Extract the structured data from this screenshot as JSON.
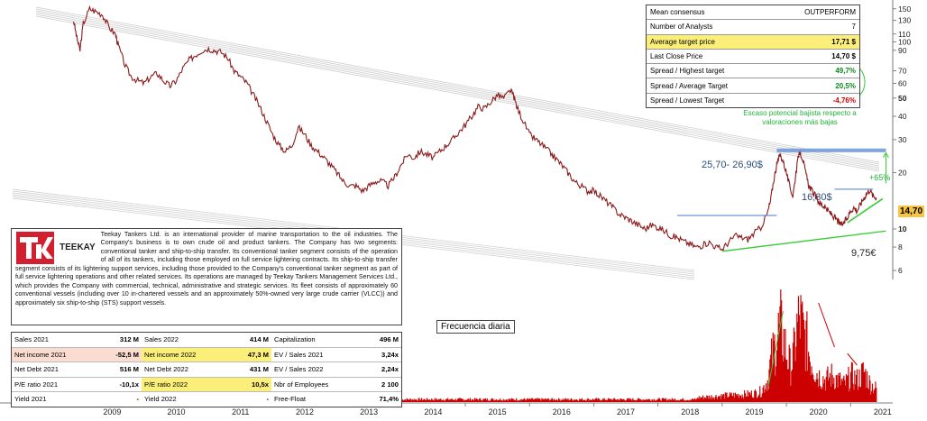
{
  "consensus": {
    "rows": [
      {
        "label": "Mean consensus",
        "value": "OUTPERFORM",
        "style": "plain"
      },
      {
        "label": "Number of Analysts",
        "value": "7",
        "style": "plain"
      },
      {
        "label": "Average target price",
        "value": "17,71 $",
        "style": "hl"
      },
      {
        "label": "Last Close Price",
        "value": "14,70 $",
        "style": "bold"
      },
      {
        "label": "Spread / Highest target",
        "value": "49,7%",
        "style": "pos"
      },
      {
        "label": "Spread / Average Target",
        "value": "20,5%",
        "style": "pos"
      },
      {
        "label": "Spread / Lowest Target",
        "value": "-4,76%",
        "style": "neg"
      }
    ]
  },
  "note": "Escaso potencial bajista respecto a valoraciones más bajas",
  "company": {
    "logo_text": "TEEKAY",
    "description": "Teekay Tankers Ltd. is an international provider of marine transportation to the oil industries. The Company's business is to own crude oil and product tankers. The Company has two segments: conventional tanker and ship-to-ship transfer. Its conventional tanker segment consists of the operation of all of its tankers, including those employed on full service lightering contracts. Its ship-to-ship transfer segment consists of its lightering support services, including those provided to the Company's conventional tanker segment as part of full service lightering operations and other related services. Its operations are managed by Teekay Tankers Management Services Ltd., which provides the Company with commercial, technical, administrative and strategic services. Its fleet consists of approximately 60 conventional vessels (including over 10 in-chartered vessels and an approximately 50%-owned very large crude carrier (VLCC)) and approximately six ship-to-ship (STS) support vessels."
  },
  "financials": [
    [
      {
        "l": "Sales 2021",
        "v": "312 M",
        "s": ""
      },
      {
        "l": "Sales 2022",
        "v": "414 M",
        "s": ""
      },
      {
        "l": "Capitalization",
        "v": "496 M",
        "s": ""
      }
    ],
    [
      {
        "l": "Net income 2021",
        "v": "-52,5 M",
        "s": "red"
      },
      {
        "l": "Net income 2022",
        "v": "47,3 M",
        "s": "yel"
      },
      {
        "l": "EV / Sales 2021",
        "v": "3,24x",
        "s": ""
      }
    ],
    [
      {
        "l": "Net Debt 2021",
        "v": "516 M",
        "s": ""
      },
      {
        "l": "Net Debt 2022",
        "v": "431 M",
        "s": ""
      },
      {
        "l": "EV / Sales 2022",
        "v": "2,24x",
        "s": ""
      }
    ],
    [
      {
        "l": "P/E ratio 2021",
        "v": "-10,1x",
        "s": ""
      },
      {
        "l": "P/E ratio 2022",
        "v": "10,5x",
        "s": "yel"
      },
      {
        "l": "Nbr of Employees",
        "v": "2 100",
        "s": ""
      }
    ],
    [
      {
        "l": "Yield 2021",
        "v": "-",
        "s": ""
      },
      {
        "l": "Yield 2022",
        "v": "-",
        "s": ""
      },
      {
        "l": "Free-Float",
        "v": "71,4%",
        "s": ""
      }
    ]
  ],
  "freq_label": "Frecuencia diaria",
  "price_tag": "14,70",
  "annotations": {
    "resistance": "25,70- 26,90$",
    "level_1630": "16,30$",
    "support": "9,75€",
    "upside": "+65%"
  },
  "colors": {
    "price": "#8b1a1a",
    "volume": "#cc0000",
    "blue_band": "#6b95d8",
    "support": "#33cc33",
    "highlight": "#fbef7a"
  },
  "chart_data": {
    "type": "line",
    "y_scale": "log",
    "y_ticks": [
      150,
      130,
      110,
      100,
      90,
      70,
      60,
      50,
      40,
      30,
      20,
      10,
      8,
      6
    ],
    "y_tick_labels": [
      "150",
      "130",
      "110",
      "100",
      "90",
      "70",
      "60",
      "50",
      "40",
      "30",
      "20",
      "10",
      "8",
      "6"
    ],
    "y_ticks_bold": [
      50,
      10
    ],
    "x_tick_labels": [
      "2009",
      "2010",
      "2011",
      "2012",
      "2013",
      "2014",
      "2015",
      "2016",
      "2017",
      "2018",
      "2019",
      "2020",
      "2021"
    ],
    "price_points": [
      [
        2008.9,
        130
      ],
      [
        2008.95,
        105
      ],
      [
        2009.0,
        90
      ],
      [
        2009.05,
        125
      ],
      [
        2009.15,
        150
      ],
      [
        2009.25,
        145
      ],
      [
        2009.35,
        140
      ],
      [
        2009.45,
        120
      ],
      [
        2009.55,
        110
      ],
      [
        2009.6,
        95
      ],
      [
        2009.7,
        75
      ],
      [
        2009.8,
        65
      ],
      [
        2009.9,
        62
      ],
      [
        2010.0,
        60
      ],
      [
        2010.1,
        65
      ],
      [
        2010.2,
        68
      ],
      [
        2010.3,
        62
      ],
      [
        2010.4,
        58
      ],
      [
        2010.5,
        62
      ],
      [
        2010.6,
        72
      ],
      [
        2010.7,
        80
      ],
      [
        2010.8,
        85
      ],
      [
        2010.9,
        90
      ],
      [
        2011.0,
        92
      ],
      [
        2011.1,
        90
      ],
      [
        2011.2,
        88
      ],
      [
        2011.3,
        82
      ],
      [
        2011.4,
        70
      ],
      [
        2011.5,
        65
      ],
      [
        2011.6,
        60
      ],
      [
        2011.7,
        52
      ],
      [
        2011.8,
        45
      ],
      [
        2011.9,
        38
      ],
      [
        2012.0,
        32
      ],
      [
        2012.1,
        28
      ],
      [
        2012.2,
        26
      ],
      [
        2012.3,
        28
      ],
      [
        2012.4,
        35
      ],
      [
        2012.5,
        32
      ],
      [
        2012.6,
        28
      ],
      [
        2012.7,
        26
      ],
      [
        2012.8,
        24
      ],
      [
        2012.9,
        22
      ],
      [
        2013.0,
        20
      ],
      [
        2013.1,
        18
      ],
      [
        2013.2,
        17
      ],
      [
        2013.3,
        17
      ],
      [
        2013.4,
        16
      ],
      [
        2013.5,
        17
      ],
      [
        2013.6,
        18
      ],
      [
        2013.7,
        18
      ],
      [
        2013.8,
        17
      ],
      [
        2013.9,
        19
      ],
      [
        2014.0,
        22
      ],
      [
        2014.1,
        25
      ],
      [
        2014.2,
        24
      ],
      [
        2014.3,
        26
      ],
      [
        2014.4,
        25
      ],
      [
        2014.5,
        24
      ],
      [
        2014.6,
        26
      ],
      [
        2014.7,
        28
      ],
      [
        2014.8,
        30
      ],
      [
        2014.9,
        33
      ],
      [
        2015.0,
        36
      ],
      [
        2015.1,
        40
      ],
      [
        2015.2,
        45
      ],
      [
        2015.3,
        44
      ],
      [
        2015.4,
        48
      ],
      [
        2015.5,
        52
      ],
      [
        2015.6,
        50
      ],
      [
        2015.7,
        55
      ],
      [
        2015.75,
        52
      ],
      [
        2015.8,
        45
      ],
      [
        2015.9,
        38
      ],
      [
        2016.0,
        32
      ],
      [
        2016.1,
        30
      ],
      [
        2016.2,
        28
      ],
      [
        2016.3,
        26
      ],
      [
        2016.4,
        24
      ],
      [
        2016.5,
        22
      ],
      [
        2016.6,
        20
      ],
      [
        2016.7,
        18
      ],
      [
        2016.8,
        17
      ],
      [
        2016.9,
        16
      ],
      [
        2017.0,
        16
      ],
      [
        2017.1,
        15
      ],
      [
        2017.2,
        14
      ],
      [
        2017.3,
        13
      ],
      [
        2017.4,
        12
      ],
      [
        2017.5,
        11.5
      ],
      [
        2017.6,
        11
      ],
      [
        2017.7,
        10.5
      ],
      [
        2017.8,
        10
      ],
      [
        2017.9,
        10.5
      ],
      [
        2018.0,
        10.2
      ],
      [
        2018.1,
        9.8
      ],
      [
        2018.2,
        9.2
      ],
      [
        2018.3,
        9.0
      ],
      [
        2018.4,
        8.6
      ],
      [
        2018.5,
        8.3
      ],
      [
        2018.6,
        8.0
      ],
      [
        2018.7,
        8.2
      ],
      [
        2018.8,
        8.5
      ],
      [
        2018.9,
        8.0
      ],
      [
        2019.0,
        7.8
      ],
      [
        2019.1,
        8.5
      ],
      [
        2019.2,
        9.2
      ],
      [
        2019.3,
        9.0
      ],
      [
        2019.4,
        8.8
      ],
      [
        2019.5,
        9.5
      ],
      [
        2019.6,
        10.2
      ],
      [
        2019.7,
        12
      ],
      [
        2019.75,
        14
      ],
      [
        2019.8,
        18
      ],
      [
        2019.85,
        22
      ],
      [
        2019.9,
        25
      ],
      [
        2019.95,
        23
      ],
      [
        2020.0,
        20
      ],
      [
        2020.05,
        17
      ],
      [
        2020.1,
        15
      ],
      [
        2020.15,
        20
      ],
      [
        2020.2,
        26
      ],
      [
        2020.25,
        24
      ],
      [
        2020.3,
        20
      ],
      [
        2020.35,
        17
      ],
      [
        2020.4,
        16
      ],
      [
        2020.45,
        15
      ],
      [
        2020.5,
        14
      ],
      [
        2020.55,
        13.5
      ],
      [
        2020.6,
        13
      ],
      [
        2020.65,
        12.5
      ],
      [
        2020.7,
        12
      ],
      [
        2020.75,
        11.5
      ],
      [
        2020.8,
        11
      ],
      [
        2020.85,
        10.5
      ],
      [
        2020.9,
        10.8
      ],
      [
        2020.95,
        11.5
      ],
      [
        2021.0,
        12.5
      ],
      [
        2021.05,
        13
      ],
      [
        2021.1,
        12.5
      ],
      [
        2021.15,
        13.5
      ],
      [
        2021.2,
        14.5
      ],
      [
        2021.25,
        15.5
      ],
      [
        2021.3,
        16.2
      ],
      [
        2021.35,
        15
      ],
      [
        2021.4,
        14.7
      ]
    ],
    "volume_points": [
      [
        2018.6,
        0.05
      ],
      [
        2018.8,
        0.06
      ],
      [
        2019.0,
        0.07
      ],
      [
        2019.2,
        0.08
      ],
      [
        2019.4,
        0.09
      ],
      [
        2019.5,
        0.1
      ],
      [
        2019.6,
        0.12
      ],
      [
        2019.7,
        0.25
      ],
      [
        2019.75,
        0.45
      ],
      [
        2019.8,
        0.6
      ],
      [
        2019.85,
        0.75
      ],
      [
        2019.9,
        0.85
      ],
      [
        2019.95,
        0.7
      ],
      [
        2020.0,
        0.55
      ],
      [
        2020.05,
        0.4
      ],
      [
        2020.1,
        0.5
      ],
      [
        2020.15,
        0.8
      ],
      [
        2020.2,
        0.95
      ],
      [
        2020.25,
        0.8
      ],
      [
        2020.3,
        0.7
      ],
      [
        2020.35,
        0.55
      ],
      [
        2020.4,
        0.45
      ],
      [
        2020.45,
        0.35
      ],
      [
        2020.5,
        0.3
      ],
      [
        2020.6,
        0.25
      ],
      [
        2020.7,
        0.3
      ],
      [
        2020.8,
        0.25
      ],
      [
        2020.9,
        0.2
      ],
      [
        2021.0,
        0.3
      ],
      [
        2021.1,
        0.25
      ],
      [
        2021.2,
        0.35
      ],
      [
        2021.3,
        0.2
      ],
      [
        2021.4,
        0.15
      ]
    ],
    "resistance_band": [
      25.7,
      26.9
    ],
    "level_line": 16.3,
    "support_level": 9.75,
    "grid": false,
    "legend": "none"
  }
}
